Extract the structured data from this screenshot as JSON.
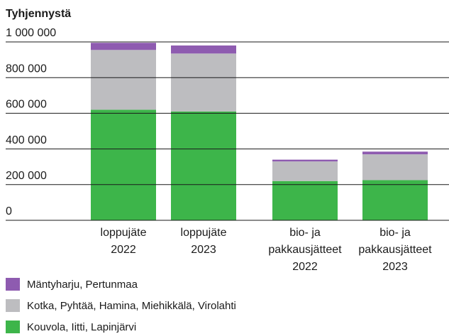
{
  "chart_data": {
    "type": "stacked_bar",
    "y_label": "Tyhjennystä",
    "categories": [
      [
        "loppujäte",
        "2022"
      ],
      [
        "loppujäte",
        "2023"
      ],
      [
        "bio- ja",
        "pakkausjätteet",
        "2022"
      ],
      [
        "bio- ja",
        "pakkausjätteet",
        "2023"
      ]
    ],
    "series": [
      {
        "name": "Kouvola, Iitti, Lapinjärvi",
        "color": "#3db54a",
        "values": [
          620000,
          610000,
          220000,
          225000
        ]
      },
      {
        "name": "Kotka, Pyhtää, Hamina, Miehikkälä, Virolahti",
        "color": "#bdbdc0",
        "values": [
          335000,
          325000,
          110000,
          145000
        ]
      },
      {
        "name": "Mäntyharju, Pertunmaa",
        "color": "#8e5bb0",
        "values": [
          40000,
          45000,
          10000,
          15000
        ]
      }
    ],
    "ylim": [
      0,
      1000000
    ],
    "yticks": [
      0,
      {
        "value": 200000,
        "label": "200 000"
      },
      {
        "value": 400000,
        "label": "400 000"
      },
      {
        "value": 600000,
        "label": "600 000"
      },
      {
        "value": 800000,
        "label": "800 000"
      },
      {
        "value": 1000000,
        "label": "1 000 000"
      }
    ],
    "grid": true
  }
}
